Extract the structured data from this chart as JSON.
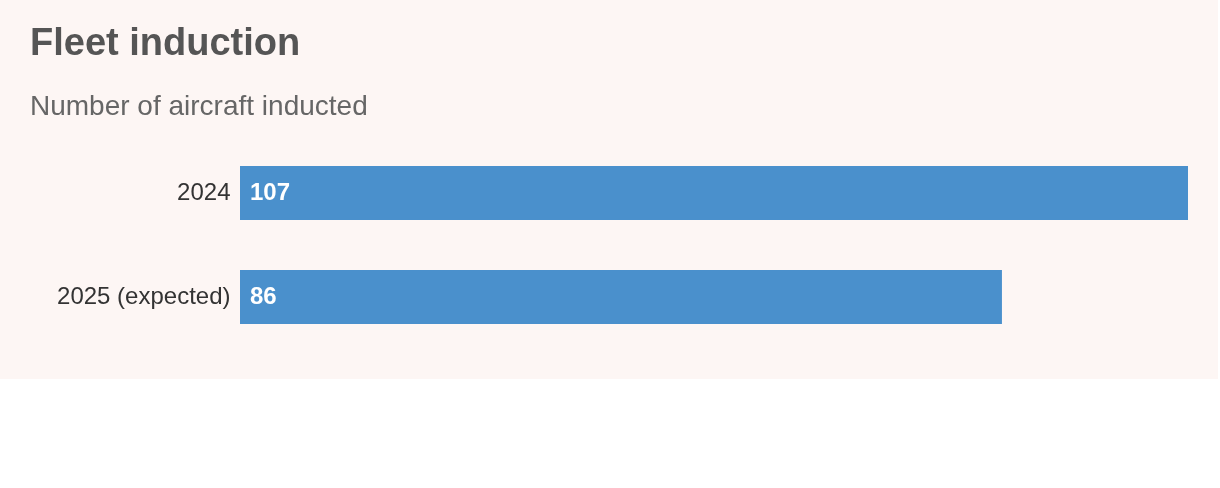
{
  "chart_data": {
    "type": "bar",
    "orientation": "horizontal",
    "title": "Fleet induction",
    "subtitle": "Number of aircraft inducted",
    "categories": [
      "2024",
      "2025 (expected)"
    ],
    "values": [
      107,
      86
    ],
    "color": "#4a90cc",
    "data_labels": true
  }
}
